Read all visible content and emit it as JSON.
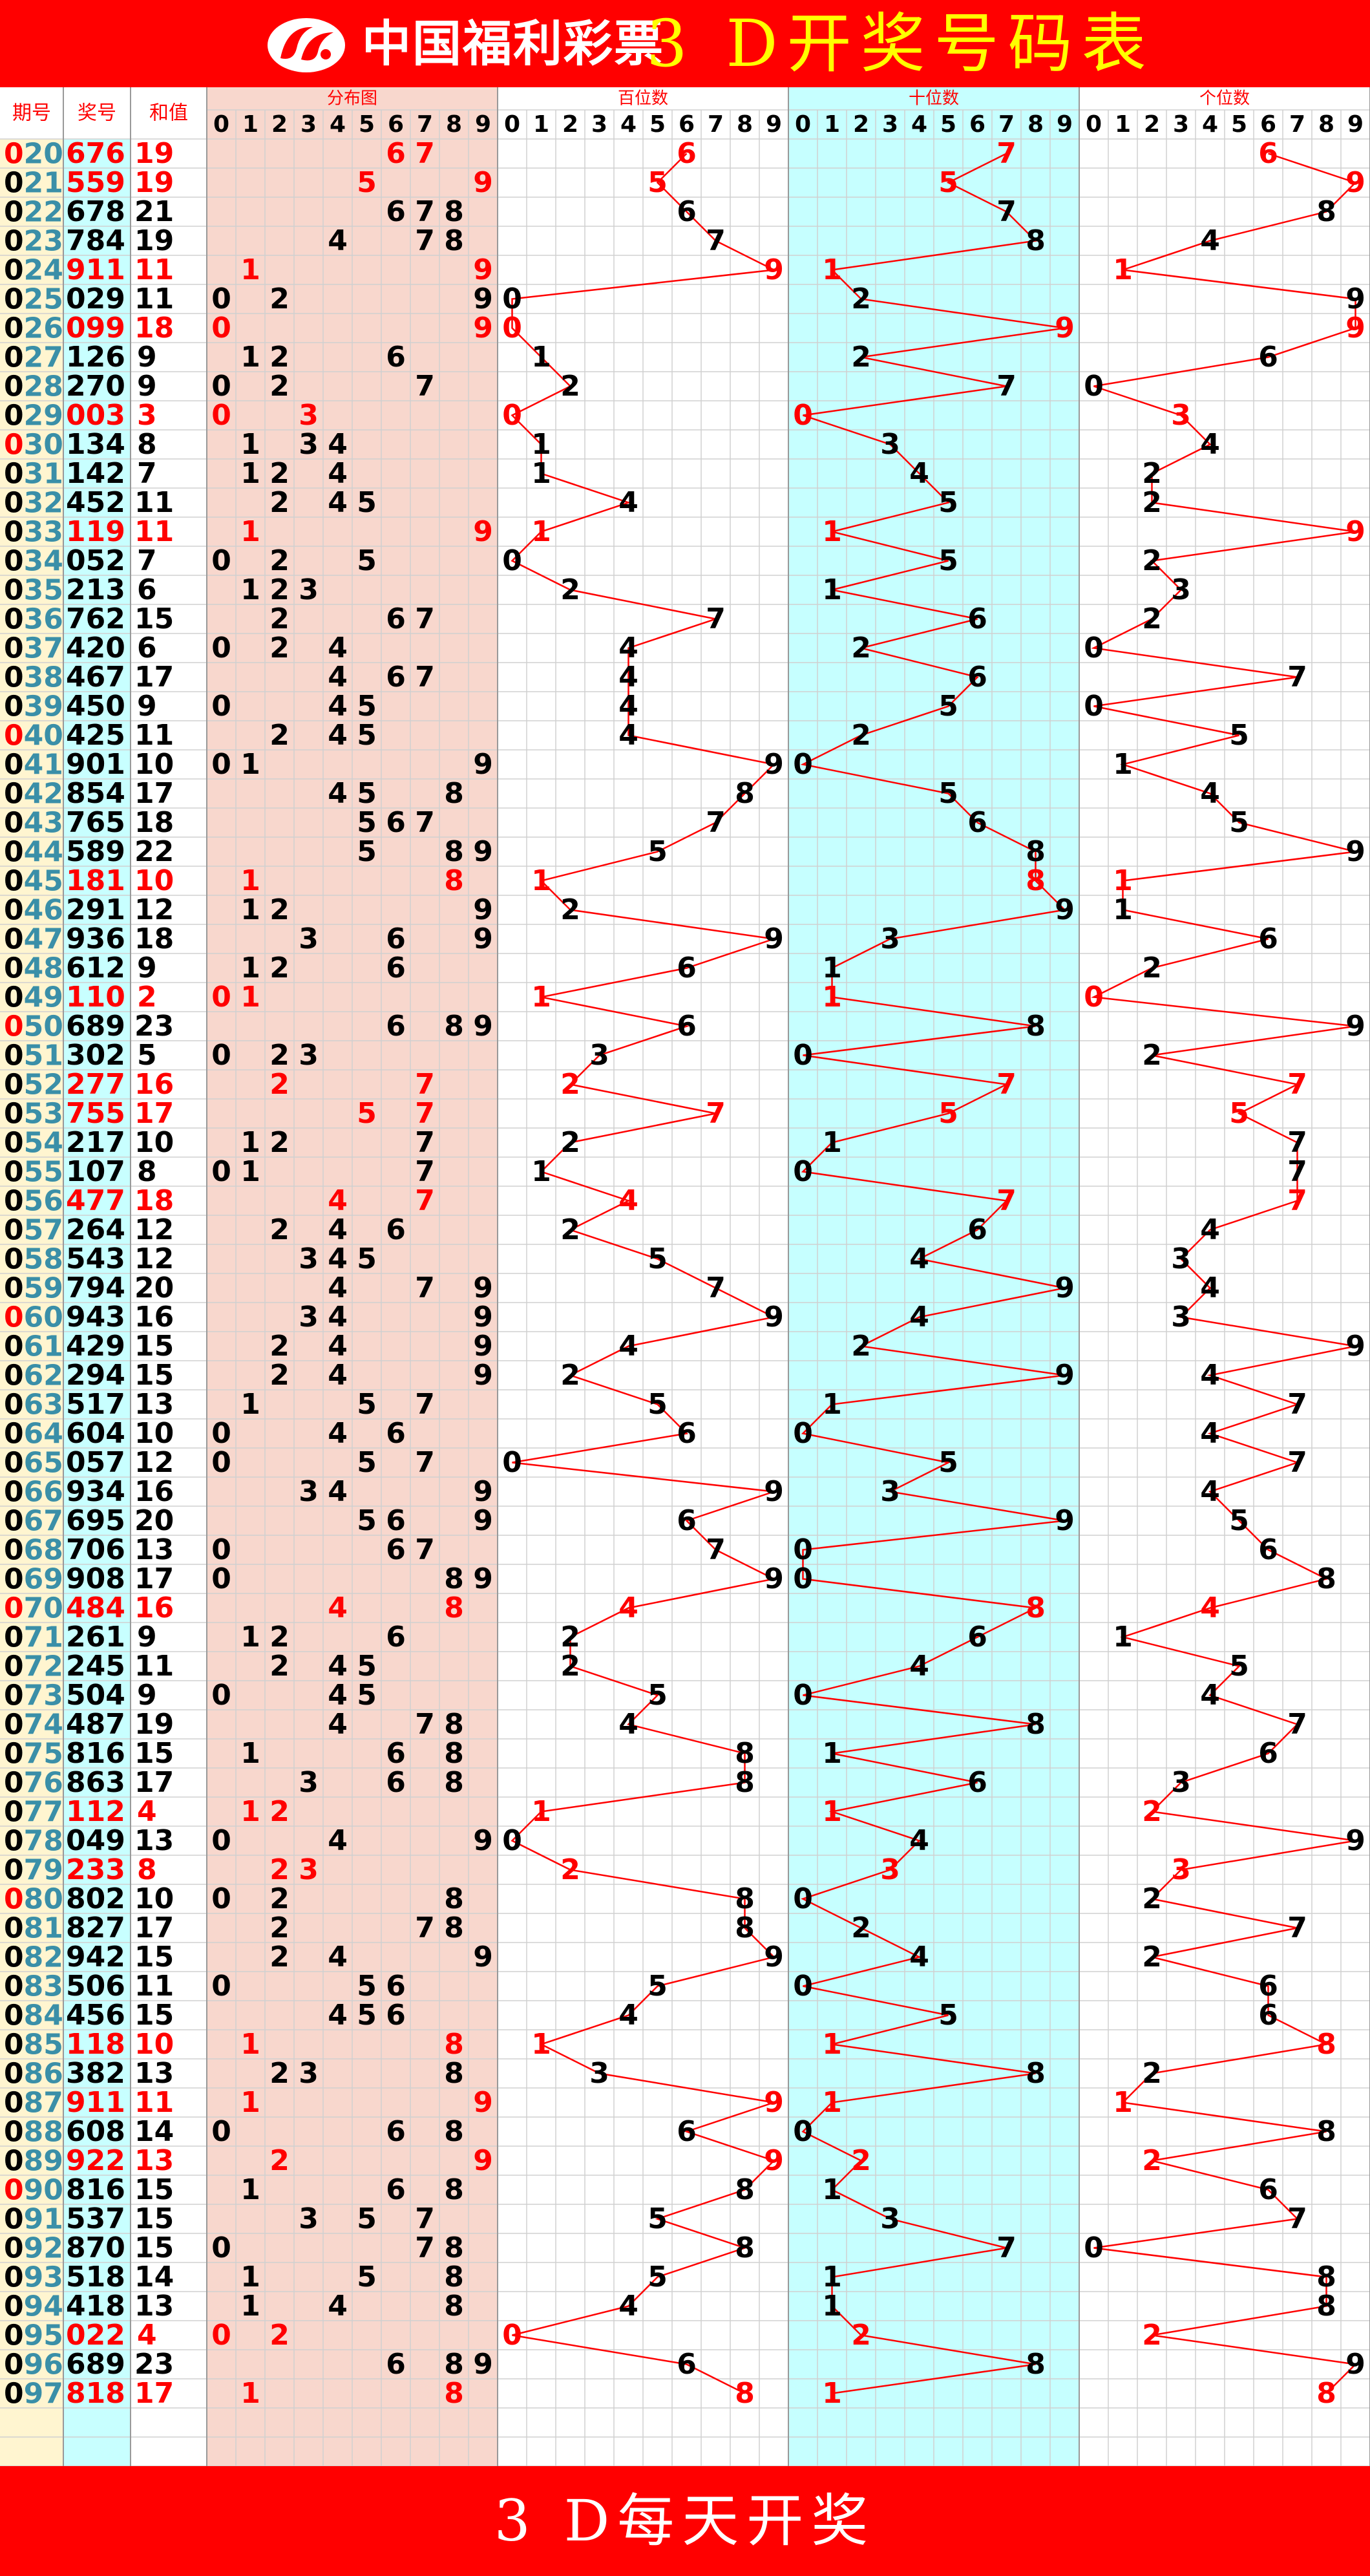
{
  "header": {
    "brand": "中国福利彩票",
    "title": "3 D开奖号码表",
    "logo_icon": "china-welfare-lottery-logo"
  },
  "footer": {
    "text": "3 D每天开奖"
  },
  "columns": {
    "period": "期号",
    "number": "奖号",
    "sum": "和值",
    "distribution": "分布图",
    "hundreds": "百位数",
    "tens": "十位数",
    "units": "个位数",
    "digits": [
      "0",
      "1",
      "2",
      "3",
      "4",
      "5",
      "6",
      "7",
      "8",
      "9"
    ]
  },
  "colors": {
    "red": "#ff0000",
    "banner": "#ff0000",
    "title_yellow": "#ffff00",
    "period_bg": "#fff5d0",
    "number_bg": "#c8ffff",
    "distribution_bg": "#f8d7cd",
    "tens_bg": "#c6ffff",
    "period_digits": "#3a8fa8",
    "grid": "#d0d0d0",
    "line": "#ff0000"
  },
  "table": {
    "rows": [
      {
        "period": "020",
        "number": "676",
        "sum": "19"
      },
      {
        "period": "021",
        "number": "559",
        "sum": "19"
      },
      {
        "period": "022",
        "number": "678",
        "sum": "21"
      },
      {
        "period": "023",
        "number": "784",
        "sum": "19"
      },
      {
        "period": "024",
        "number": "911",
        "sum": "11"
      },
      {
        "period": "025",
        "number": "029",
        "sum": "11"
      },
      {
        "period": "026",
        "number": "099",
        "sum": "18"
      },
      {
        "period": "027",
        "number": "126",
        "sum": "9"
      },
      {
        "period": "028",
        "number": "270",
        "sum": "9"
      },
      {
        "period": "029",
        "number": "003",
        "sum": "3"
      },
      {
        "period": "030",
        "number": "134",
        "sum": "8"
      },
      {
        "period": "031",
        "number": "142",
        "sum": "7"
      },
      {
        "period": "032",
        "number": "452",
        "sum": "11"
      },
      {
        "period": "033",
        "number": "119",
        "sum": "11"
      },
      {
        "period": "034",
        "number": "052",
        "sum": "7"
      },
      {
        "period": "035",
        "number": "213",
        "sum": "6"
      },
      {
        "period": "036",
        "number": "762",
        "sum": "15"
      },
      {
        "period": "037",
        "number": "420",
        "sum": "6"
      },
      {
        "period": "038",
        "number": "467",
        "sum": "17"
      },
      {
        "period": "039",
        "number": "450",
        "sum": "9"
      },
      {
        "period": "040",
        "number": "425",
        "sum": "11"
      },
      {
        "period": "041",
        "number": "901",
        "sum": "10"
      },
      {
        "period": "042",
        "number": "854",
        "sum": "17"
      },
      {
        "period": "043",
        "number": "765",
        "sum": "18"
      },
      {
        "period": "044",
        "number": "589",
        "sum": "22"
      },
      {
        "period": "045",
        "number": "181",
        "sum": "10"
      },
      {
        "period": "046",
        "number": "291",
        "sum": "12"
      },
      {
        "period": "047",
        "number": "936",
        "sum": "18"
      },
      {
        "period": "048",
        "number": "612",
        "sum": "9"
      },
      {
        "period": "049",
        "number": "110",
        "sum": "2"
      },
      {
        "period": "050",
        "number": "689",
        "sum": "23"
      },
      {
        "period": "051",
        "number": "302",
        "sum": "5"
      },
      {
        "period": "052",
        "number": "277",
        "sum": "16"
      },
      {
        "period": "053",
        "number": "755",
        "sum": "17"
      },
      {
        "period": "054",
        "number": "217",
        "sum": "10"
      },
      {
        "period": "055",
        "number": "107",
        "sum": "8"
      },
      {
        "period": "056",
        "number": "477",
        "sum": "18"
      },
      {
        "period": "057",
        "number": "264",
        "sum": "12"
      },
      {
        "period": "058",
        "number": "543",
        "sum": "12"
      },
      {
        "period": "059",
        "number": "794",
        "sum": "20"
      },
      {
        "period": "060",
        "number": "943",
        "sum": "16"
      },
      {
        "period": "061",
        "number": "429",
        "sum": "15"
      },
      {
        "period": "062",
        "number": "294",
        "sum": "15"
      },
      {
        "period": "063",
        "number": "517",
        "sum": "13"
      },
      {
        "period": "064",
        "number": "604",
        "sum": "10"
      },
      {
        "period": "065",
        "number": "057",
        "sum": "12"
      },
      {
        "period": "066",
        "number": "934",
        "sum": "16"
      },
      {
        "period": "067",
        "number": "695",
        "sum": "20"
      },
      {
        "period": "068",
        "number": "706",
        "sum": "13"
      },
      {
        "period": "069",
        "number": "908",
        "sum": "17"
      },
      {
        "period": "070",
        "number": "484",
        "sum": "16"
      },
      {
        "period": "071",
        "number": "261",
        "sum": "9"
      },
      {
        "period": "072",
        "number": "245",
        "sum": "11"
      },
      {
        "period": "073",
        "number": "504",
        "sum": "9"
      },
      {
        "period": "074",
        "number": "487",
        "sum": "19"
      },
      {
        "period": "075",
        "number": "816",
        "sum": "15"
      },
      {
        "period": "076",
        "number": "863",
        "sum": "17"
      },
      {
        "period": "077",
        "number": "112",
        "sum": "4"
      },
      {
        "period": "078",
        "number": "049",
        "sum": "13"
      },
      {
        "period": "079",
        "number": "233",
        "sum": "8"
      },
      {
        "period": "080",
        "number": "802",
        "sum": "10"
      },
      {
        "period": "081",
        "number": "827",
        "sum": "17"
      },
      {
        "period": "082",
        "number": "942",
        "sum": "15"
      },
      {
        "period": "083",
        "number": "506",
        "sum": "11"
      },
      {
        "period": "084",
        "number": "456",
        "sum": "15"
      },
      {
        "period": "085",
        "number": "118",
        "sum": "10"
      },
      {
        "period": "086",
        "number": "382",
        "sum": "13"
      },
      {
        "period": "087",
        "number": "911",
        "sum": "11"
      },
      {
        "period": "088",
        "number": "608",
        "sum": "14"
      },
      {
        "period": "089",
        "number": "922",
        "sum": "13"
      },
      {
        "period": "090",
        "number": "816",
        "sum": "15"
      },
      {
        "period": "091",
        "number": "537",
        "sum": "15"
      },
      {
        "period": "092",
        "number": "870",
        "sum": "15"
      },
      {
        "period": "093",
        "number": "518",
        "sum": "14"
      },
      {
        "period": "094",
        "number": "418",
        "sum": "13"
      },
      {
        "period": "095",
        "number": "022",
        "sum": "4"
      },
      {
        "period": "096",
        "number": "689",
        "sum": "23"
      },
      {
        "period": "097",
        "number": "818",
        "sum": "17"
      }
    ]
  }
}
